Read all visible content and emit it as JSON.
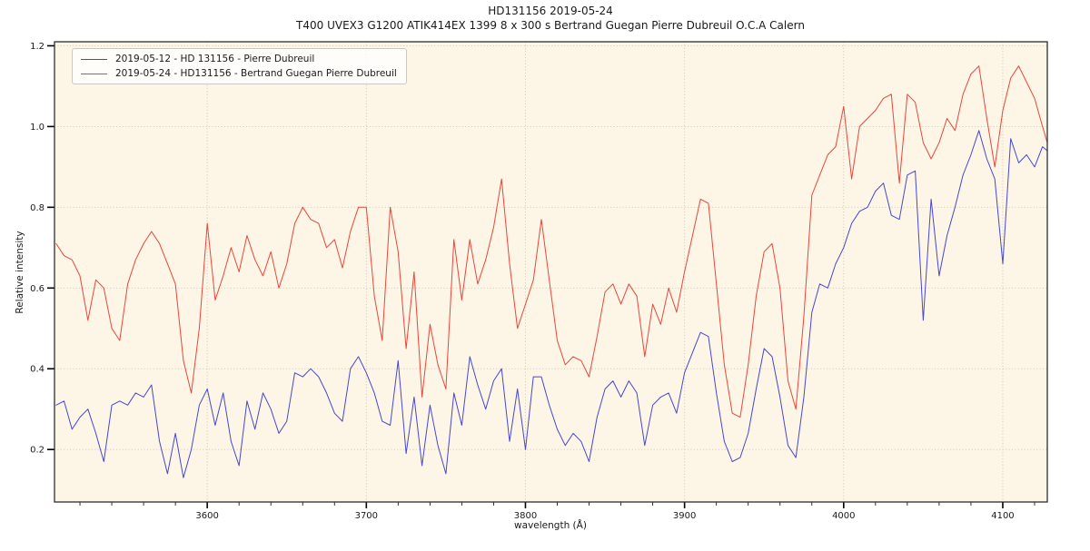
{
  "chart_data": {
    "type": "line",
    "title": "HD131156 2019-05-24",
    "subtitle": "T400 UVEX3 G1200 ATIK414EX 1399 8 x 300 s Bertrand Guegan Pierre Dubreuil O.C.A Calern",
    "xlabel": "wavelength (Å)",
    "ylabel": "Relative intensity",
    "xlim": [
      3504,
      4128
    ],
    "ylim": [
      0.07,
      1.21
    ],
    "xticks": [
      3600,
      3700,
      3800,
      3900,
      4000,
      4100
    ],
    "x_minor_step": 20,
    "yticks": [
      0.2,
      0.4,
      0.6,
      0.8,
      1.0,
      1.2
    ],
    "grid": true,
    "grid_style": "dotted",
    "grid_color": "#c9c3b2",
    "axes_background": "#fdf5e6",
    "figure_background": "#ffffff",
    "spine_color": "#2e2e2e",
    "legend_position": "upper left",
    "x": [
      3505,
      3510,
      3515,
      3520,
      3525,
      3530,
      3535,
      3540,
      3545,
      3550,
      3555,
      3560,
      3565,
      3570,
      3575,
      3580,
      3585,
      3590,
      3595,
      3600,
      3605,
      3610,
      3615,
      3620,
      3625,
      3630,
      3635,
      3640,
      3645,
      3650,
      3655,
      3660,
      3665,
      3670,
      3675,
      3680,
      3685,
      3690,
      3695,
      3700,
      3705,
      3710,
      3715,
      3720,
      3725,
      3730,
      3735,
      3740,
      3745,
      3750,
      3755,
      3760,
      3765,
      3770,
      3775,
      3780,
      3785,
      3790,
      3795,
      3800,
      3805,
      3810,
      3815,
      3820,
      3825,
      3830,
      3835,
      3840,
      3845,
      3850,
      3855,
      3860,
      3865,
      3870,
      3875,
      3880,
      3885,
      3890,
      3895,
      3900,
      3905,
      3910,
      3915,
      3920,
      3925,
      3930,
      3935,
      3940,
      3945,
      3950,
      3955,
      3960,
      3965,
      3970,
      3975,
      3980,
      3985,
      3990,
      3995,
      4000,
      4005,
      4010,
      4015,
      4020,
      4025,
      4030,
      4035,
      4040,
      4045,
      4050,
      4055,
      4060,
      4065,
      4070,
      4075,
      4080,
      4085,
      4090,
      4095,
      4100,
      4105,
      4110,
      4115,
      4120,
      4125,
      4128
    ],
    "series": [
      {
        "name": "2019-05-12 - HD 131156 - Pierre Dubreuil",
        "color": "#4747d1",
        "values": [
          0.31,
          0.32,
          0.25,
          0.28,
          0.3,
          0.24,
          0.17,
          0.31,
          0.32,
          0.31,
          0.34,
          0.33,
          0.36,
          0.22,
          0.14,
          0.24,
          0.13,
          0.2,
          0.31,
          0.35,
          0.26,
          0.34,
          0.22,
          0.16,
          0.32,
          0.25,
          0.34,
          0.3,
          0.24,
          0.27,
          0.39,
          0.38,
          0.4,
          0.38,
          0.34,
          0.29,
          0.27,
          0.4,
          0.43,
          0.39,
          0.34,
          0.27,
          0.26,
          0.42,
          0.19,
          0.33,
          0.16,
          0.31,
          0.21,
          0.14,
          0.34,
          0.26,
          0.43,
          0.36,
          0.3,
          0.37,
          0.4,
          0.22,
          0.35,
          0.2,
          0.38,
          0.38,
          0.31,
          0.25,
          0.21,
          0.24,
          0.22,
          0.17,
          0.28,
          0.35,
          0.37,
          0.33,
          0.37,
          0.34,
          0.21,
          0.31,
          0.33,
          0.34,
          0.29,
          0.39,
          0.44,
          0.49,
          0.48,
          0.34,
          0.22,
          0.17,
          0.18,
          0.24,
          0.35,
          0.45,
          0.43,
          0.33,
          0.21,
          0.18,
          0.33,
          0.54,
          0.61,
          0.6,
          0.66,
          0.7,
          0.76,
          0.79,
          0.8,
          0.84,
          0.86,
          0.78,
          0.77,
          0.88,
          0.89,
          0.52,
          0.82,
          0.63,
          0.73,
          0.8,
          0.88,
          0.93,
          0.99,
          0.92,
          0.87,
          0.66,
          0.97,
          0.91,
          0.93,
          0.9,
          0.95,
          0.94
        ]
      },
      {
        "name": "2019-05-24 - HD131156 - Bertrand Guegan Pierre Dubreuil",
        "color": "#e8463c",
        "values": [
          0.71,
          0.68,
          0.67,
          0.63,
          0.52,
          0.62,
          0.6,
          0.5,
          0.47,
          0.61,
          0.67,
          0.71,
          0.74,
          0.71,
          0.66,
          0.61,
          0.42,
          0.34,
          0.5,
          0.76,
          0.57,
          0.63,
          0.7,
          0.64,
          0.73,
          0.67,
          0.63,
          0.69,
          0.6,
          0.66,
          0.76,
          0.8,
          0.77,
          0.76,
          0.7,
          0.72,
          0.65,
          0.74,
          0.8,
          0.8,
          0.58,
          0.47,
          0.8,
          0.69,
          0.45,
          0.64,
          0.33,
          0.51,
          0.41,
          0.35,
          0.72,
          0.57,
          0.72,
          0.61,
          0.67,
          0.75,
          0.87,
          0.66,
          0.5,
          0.56,
          0.62,
          0.77,
          0.62,
          0.47,
          0.41,
          0.43,
          0.42,
          0.38,
          0.48,
          0.59,
          0.61,
          0.56,
          0.61,
          0.58,
          0.43,
          0.56,
          0.51,
          0.6,
          0.54,
          0.64,
          0.73,
          0.82,
          0.81,
          0.61,
          0.41,
          0.29,
          0.28,
          0.41,
          0.58,
          0.69,
          0.71,
          0.6,
          0.37,
          0.3,
          0.53,
          0.83,
          0.88,
          0.93,
          0.95,
          1.05,
          0.87,
          1.0,
          1.02,
          1.04,
          1.07,
          1.08,
          0.86,
          1.08,
          1.06,
          0.96,
          0.92,
          0.96,
          1.02,
          0.99,
          1.08,
          1.13,
          1.15,
          1.02,
          0.9,
          1.04,
          1.12,
          1.15,
          1.11,
          1.07,
          1.0,
          0.96
        ]
      }
    ]
  }
}
